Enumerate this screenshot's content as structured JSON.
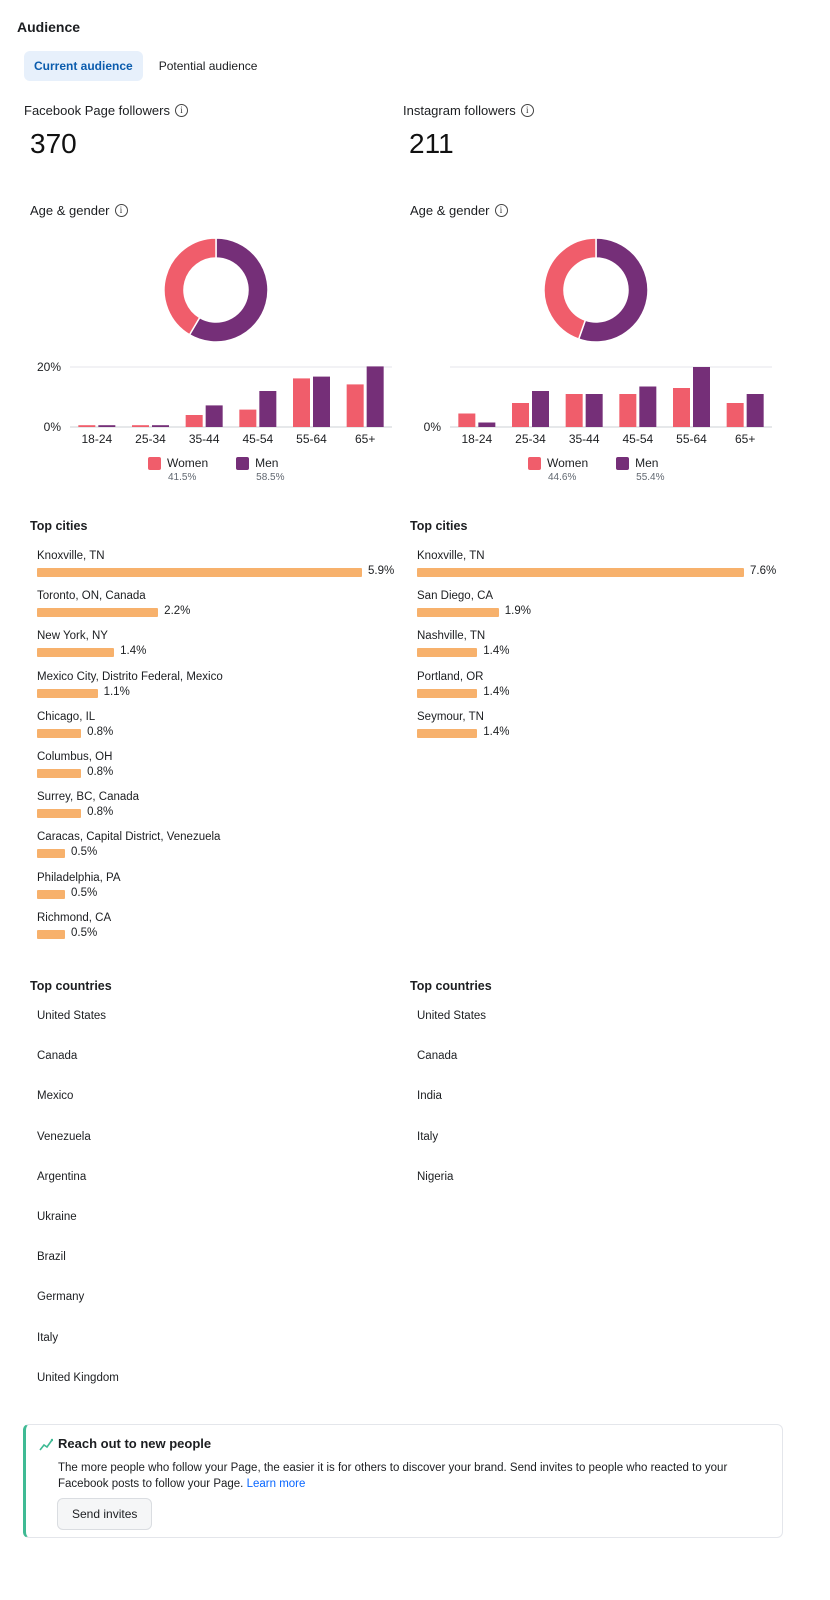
{
  "page": {
    "title": "Audience"
  },
  "tabs": [
    {
      "label": "Current audience",
      "active": true
    },
    {
      "label": "Potential audience",
      "active": false
    }
  ],
  "colors": {
    "women": "#f05d6b",
    "men": "#752f78",
    "city_bar": "#f7b16c",
    "accent": "#3fba94",
    "link": "#0866ff"
  },
  "facebook": {
    "followers_label": "Facebook Page followers",
    "followers_count": "370",
    "age_gender_label": "Age & gender",
    "top_cities_label": "Top cities",
    "top_countries_label": "Top countries",
    "cities": [
      {
        "name": "Knoxville, TN",
        "pct": "5.9%",
        "value": 5.9
      },
      {
        "name": "Toronto, ON, Canada",
        "pct": "2.2%",
        "value": 2.2
      },
      {
        "name": "New York, NY",
        "pct": "1.4%",
        "value": 1.4
      },
      {
        "name": "Mexico City, Distrito Federal, Mexico",
        "pct": "1.1%",
        "value": 1.1
      },
      {
        "name": "Chicago, IL",
        "pct": "0.8%",
        "value": 0.8
      },
      {
        "name": "Columbus, OH",
        "pct": "0.8%",
        "value": 0.8
      },
      {
        "name": "Surrey, BC, Canada",
        "pct": "0.8%",
        "value": 0.8
      },
      {
        "name": "Caracas, Capital District, Venezuela",
        "pct": "0.5%",
        "value": 0.5
      },
      {
        "name": "Philadelphia, PA",
        "pct": "0.5%",
        "value": 0.5
      },
      {
        "name": "Richmond, CA",
        "pct": "0.5%",
        "value": 0.5
      }
    ],
    "countries": [
      "United States",
      "Canada",
      "Mexico",
      "Venezuela",
      "Argentina",
      "Ukraine",
      "Brazil",
      "Germany",
      "Italy",
      "United Kingdom"
    ]
  },
  "instagram": {
    "followers_label": "Instagram followers",
    "followers_count": "211",
    "age_gender_label": "Age & gender",
    "top_cities_label": "Top cities",
    "top_countries_label": "Top countries",
    "cities": [
      {
        "name": "Knoxville, TN",
        "pct": "7.6%",
        "value": 7.6
      },
      {
        "name": "San Diego, CA",
        "pct": "1.9%",
        "value": 1.9
      },
      {
        "name": "Nashville, TN",
        "pct": "1.4%",
        "value": 1.4
      },
      {
        "name": "Portland, OR",
        "pct": "1.4%",
        "value": 1.4
      },
      {
        "name": "Seymour, TN",
        "pct": "1.4%",
        "value": 1.4
      }
    ],
    "countries": [
      "United States",
      "Canada",
      "India",
      "Italy",
      "Nigeria"
    ]
  },
  "chart_data": [
    {
      "type": "pie",
      "variant": "donut",
      "labels": [
        "Women",
        "Men"
      ],
      "values": [
        41.5,
        58.5
      ],
      "legend_values": [
        "41.5%",
        "58.5%"
      ]
    },
    {
      "type": "bar",
      "categories": [
        "18-24",
        "25-34",
        "35-44",
        "45-54",
        "55-64",
        "65+"
      ],
      "series": [
        {
          "name": "Women",
          "values": [
            0.6,
            0.6,
            4.0,
            5.8,
            16.2,
            14.2
          ]
        },
        {
          "name": "Men",
          "values": [
            0.6,
            0.6,
            7.2,
            12.0,
            16.8,
            20.2
          ]
        }
      ],
      "yticks": [
        "0%",
        "20%"
      ],
      "ylim": [
        0,
        20
      ],
      "legend": "bottom"
    },
    {
      "type": "pie",
      "variant": "donut",
      "labels": [
        "Women",
        "Men"
      ],
      "values": [
        44.6,
        55.4
      ],
      "legend_values": [
        "44.6%",
        "55.4%"
      ]
    },
    {
      "type": "bar",
      "categories": [
        "18-24",
        "25-34",
        "35-44",
        "45-54",
        "55-64",
        "65+"
      ],
      "series": [
        {
          "name": "Women",
          "values": [
            4.5,
            8.0,
            11.0,
            11.0,
            13.0,
            8.0
          ]
        },
        {
          "name": "Men",
          "values": [
            1.5,
            12.0,
            11.0,
            13.5,
            20.0,
            11.0
          ]
        }
      ],
      "yticks": [
        "0%"
      ],
      "ylim": [
        0,
        20
      ],
      "legend": "bottom"
    }
  ],
  "banner": {
    "title": "Reach out to new people",
    "body": "The more people who follow your Page, the easier it is for others to discover your brand. Send invites to people who reacted to your Facebook posts to follow your Page.",
    "link": "Learn more",
    "button": "Send invites"
  }
}
